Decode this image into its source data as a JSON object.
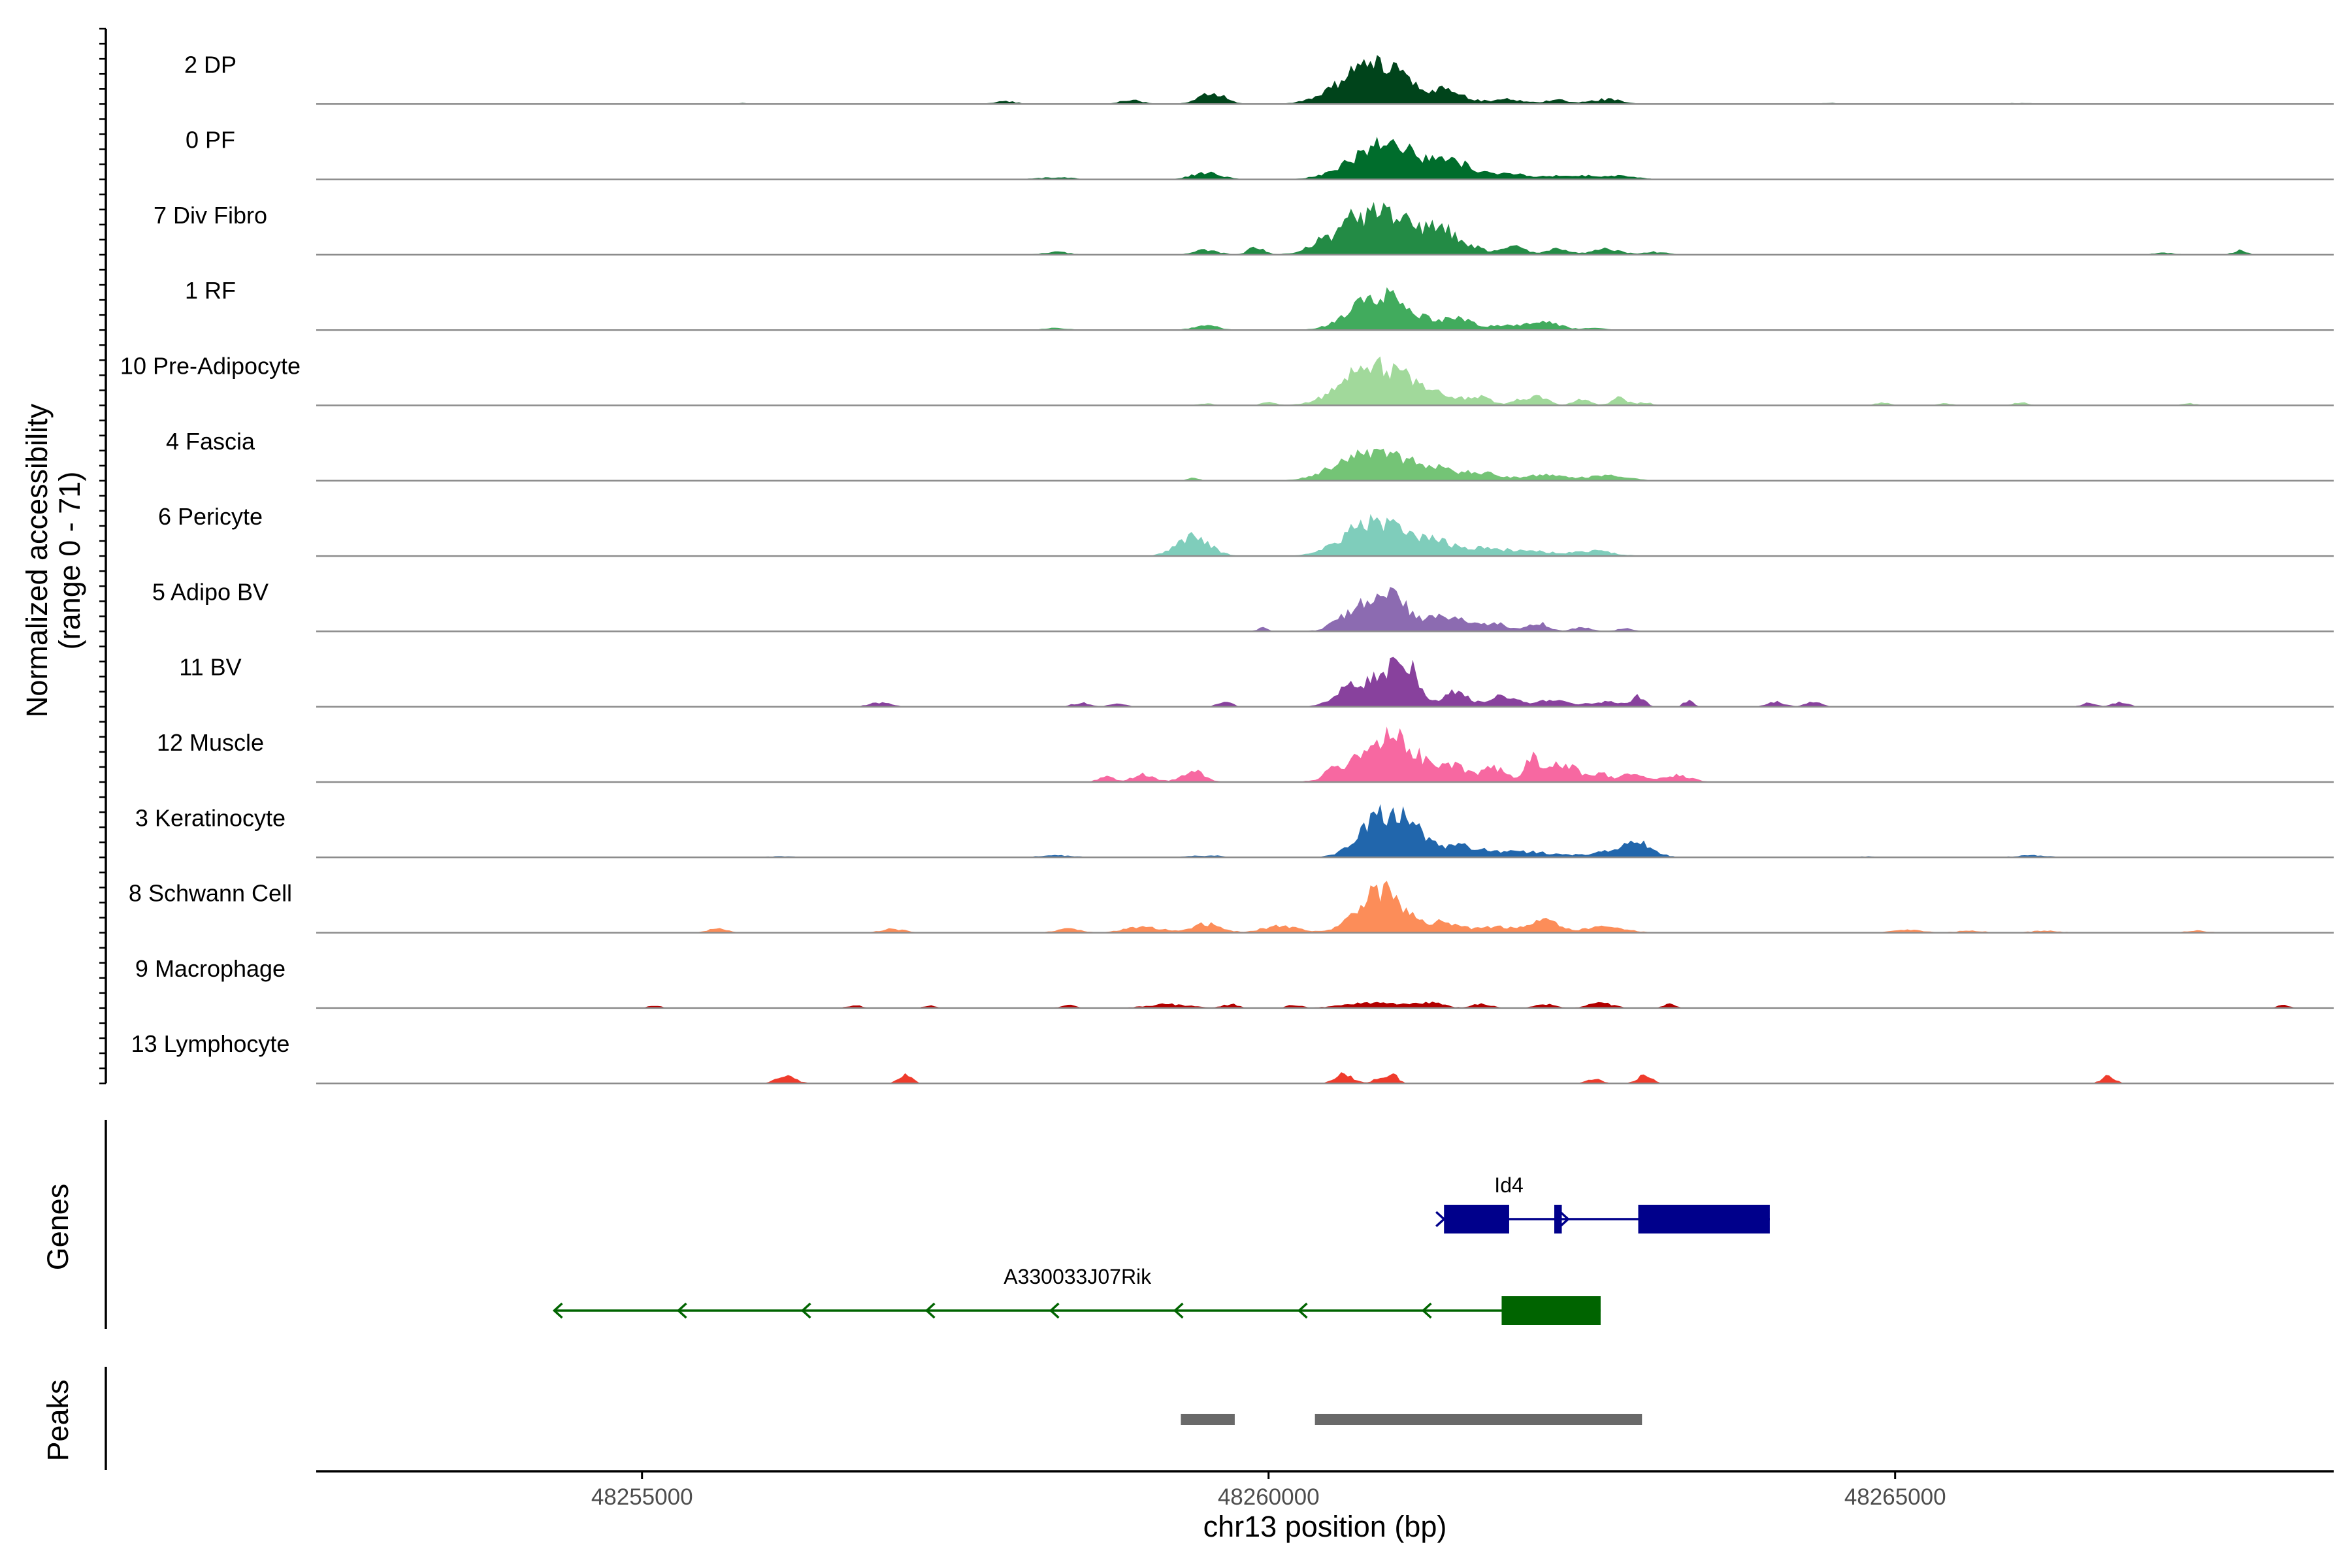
{
  "chart_data": {
    "type": "area",
    "chromosome": "chr13",
    "xlim": [
      48252400,
      48268500
    ],
    "xlabel": "chr13 position (bp)",
    "x_ticks": [
      48255000,
      48260000,
      48265000
    ],
    "x_tick_labels": [
      "48255000",
      "48260000",
      "48265000"
    ],
    "ylabel_line1": "Normalized accessibility",
    "ylabel_line2": "(range 0 - 71)",
    "ylim": [
      0,
      71
    ],
    "tracks": [
      {
        "name": "2 DP",
        "color": "#00441b",
        "peaks": [
          [
            48255800,
            40,
            1
          ],
          [
            48257900,
            90,
            3
          ],
          [
            48258900,
            100,
            4
          ],
          [
            48259550,
            110,
            11
          ],
          [
            48260850,
            260,
            41
          ],
          [
            48261450,
            140,
            11
          ],
          [
            48261900,
            120,
            5
          ],
          [
            48262300,
            110,
            4
          ],
          [
            48262700,
            120,
            5
          ],
          [
            48264500,
            150,
            1
          ],
          [
            48266000,
            150,
            1
          ]
        ]
      },
      {
        "name": "0 PF",
        "color": "#006d2c",
        "peaks": [
          [
            48258300,
            150,
            2
          ],
          [
            48259500,
            120,
            7
          ],
          [
            48260950,
            260,
            38
          ],
          [
            48261500,
            140,
            15
          ],
          [
            48261900,
            140,
            6
          ],
          [
            48262400,
            200,
            4
          ],
          [
            48262800,
            150,
            3
          ]
        ]
      },
      {
        "name": "7 Div Fibro",
        "color": "#238b45",
        "peaks": [
          [
            48258300,
            100,
            3
          ],
          [
            48259500,
            100,
            5
          ],
          [
            48259900,
            60,
            8
          ],
          [
            48260400,
            80,
            6
          ],
          [
            48260650,
            50,
            8
          ],
          [
            48260900,
            280,
            44
          ],
          [
            48261400,
            110,
            19
          ],
          [
            48261650,
            90,
            6
          ],
          [
            48261950,
            90,
            9
          ],
          [
            48262300,
            90,
            6
          ],
          [
            48262700,
            120,
            6
          ],
          [
            48263100,
            90,
            3
          ],
          [
            48267150,
            90,
            2
          ],
          [
            48267750,
            50,
            5
          ]
        ]
      },
      {
        "name": "1 RF",
        "color": "#41ab5d",
        "peaks": [
          [
            48258300,
            100,
            2
          ],
          [
            48259500,
            100,
            5
          ],
          [
            48260900,
            220,
            37
          ],
          [
            48261500,
            150,
            11
          ],
          [
            48261900,
            100,
            5
          ],
          [
            48262200,
            120,
            9
          ],
          [
            48262600,
            100,
            2
          ]
        ]
      },
      {
        "name": "10 Pre-Adipocyte",
        "color": "#a1d99b",
        "peaks": [
          [
            48259500,
            60,
            2
          ],
          [
            48260000,
            60,
            3
          ],
          [
            48260800,
            220,
            38
          ],
          [
            48261100,
            140,
            15
          ],
          [
            48261400,
            120,
            11
          ],
          [
            48261700,
            90,
            8
          ],
          [
            48262000,
            70,
            5
          ],
          [
            48262150,
            80,
            9
          ],
          [
            48262500,
            70,
            6
          ],
          [
            48262800,
            60,
            8
          ],
          [
            48263000,
            60,
            3
          ],
          [
            48264900,
            60,
            3
          ],
          [
            48265400,
            60,
            2
          ],
          [
            48266000,
            60,
            3
          ],
          [
            48267350,
            60,
            2
          ]
        ]
      },
      {
        "name": "4 Fascia",
        "color": "#74c476",
        "peaks": [
          [
            48259400,
            40,
            4
          ],
          [
            48260800,
            240,
            33
          ],
          [
            48261300,
            160,
            13
          ],
          [
            48261700,
            150,
            8
          ],
          [
            48262200,
            150,
            6
          ],
          [
            48262700,
            180,
            5
          ]
        ]
      },
      {
        "name": "6 Pericyte",
        "color": "#7fcdbb",
        "peaks": [
          [
            48259400,
            130,
            20
          ],
          [
            48260850,
            230,
            37
          ],
          [
            48261350,
            160,
            13
          ],
          [
            48261750,
            140,
            7
          ],
          [
            48262100,
            180,
            5
          ],
          [
            48262600,
            160,
            5
          ]
        ]
      },
      {
        "name": "5 Adipo BV",
        "color": "#8c6bb1",
        "peaks": [
          [
            48259950,
            40,
            4
          ],
          [
            48260550,
            60,
            5
          ],
          [
            48260900,
            200,
            41
          ],
          [
            48261450,
            140,
            14
          ],
          [
            48261800,
            110,
            8
          ],
          [
            48262150,
            80,
            9
          ],
          [
            48262500,
            80,
            4
          ],
          [
            48262850,
            70,
            3
          ]
        ]
      },
      {
        "name": "11 BV",
        "color": "#88419d",
        "peaks": [
          [
            48256900,
            90,
            4
          ],
          [
            48258500,
            70,
            4
          ],
          [
            48258800,
            60,
            4
          ],
          [
            48259650,
            60,
            5
          ],
          [
            48260600,
            110,
            11
          ],
          [
            48260900,
            180,
            30
          ],
          [
            48261100,
            100,
            31
          ],
          [
            48261500,
            90,
            17
          ],
          [
            48261850,
            110,
            10
          ],
          [
            48262250,
            170,
            6
          ],
          [
            48262700,
            110,
            5
          ],
          [
            48262950,
            50,
            11
          ],
          [
            48263350,
            40,
            6
          ],
          [
            48264050,
            70,
            5
          ],
          [
            48264350,
            60,
            5
          ],
          [
            48266550,
            60,
            4
          ],
          [
            48266800,
            60,
            5
          ]
        ]
      },
      {
        "name": "12 Muscle",
        "color": "#f768a1",
        "peaks": [
          [
            48258700,
            60,
            6
          ],
          [
            48259000,
            90,
            8
          ],
          [
            48259400,
            90,
            12
          ],
          [
            48260500,
            60,
            5
          ],
          [
            48260950,
            240,
            48
          ],
          [
            48261500,
            100,
            13
          ],
          [
            48261800,
            100,
            14
          ],
          [
            48262100,
            50,
            25
          ],
          [
            48262350,
            120,
            20
          ],
          [
            48262650,
            60,
            9
          ],
          [
            48262900,
            100,
            8
          ],
          [
            48263250,
            120,
            7
          ]
        ]
      },
      {
        "name": "3 Keratinocyte",
        "color": "#2166ac",
        "peaks": [
          [
            48256100,
            200,
            1
          ],
          [
            48258300,
            150,
            2
          ],
          [
            48259500,
            150,
            2
          ],
          [
            48260900,
            170,
            42
          ],
          [
            48261150,
            110,
            24
          ],
          [
            48261500,
            160,
            11
          ],
          [
            48262000,
            280,
            6
          ],
          [
            48262750,
            180,
            5
          ],
          [
            48262950,
            120,
            13
          ],
          [
            48264800,
            150,
            1
          ],
          [
            48266100,
            150,
            2
          ]
        ]
      },
      {
        "name": "8 Schwann Cell",
        "color": "#fc8d59",
        "peaks": [
          [
            48255600,
            80,
            4
          ],
          [
            48257000,
            100,
            4
          ],
          [
            48258400,
            100,
            4
          ],
          [
            48259000,
            150,
            6
          ],
          [
            48259500,
            120,
            9
          ],
          [
            48260100,
            150,
            7
          ],
          [
            48260900,
            180,
            43
          ],
          [
            48261400,
            120,
            10
          ],
          [
            48261800,
            150,
            6
          ],
          [
            48262200,
            120,
            12
          ],
          [
            48262700,
            150,
            7
          ],
          [
            48265100,
            120,
            3
          ],
          [
            48265600,
            120,
            2
          ],
          [
            48266200,
            120,
            2
          ],
          [
            48267400,
            100,
            2
          ]
        ]
      },
      {
        "name": "9 Macrophage",
        "color": "#b30000",
        "peaks": [
          [
            48255100,
            50,
            3
          ],
          [
            48256700,
            60,
            3
          ],
          [
            48257300,
            50,
            3
          ],
          [
            48258400,
            60,
            3
          ],
          [
            48259200,
            170,
            4
          ],
          [
            48259700,
            60,
            4
          ],
          [
            48260200,
            60,
            3
          ],
          [
            48260850,
            230,
            6
          ],
          [
            48261300,
            100,
            5
          ],
          [
            48261700,
            80,
            4
          ],
          [
            48262200,
            80,
            4
          ],
          [
            48262650,
            100,
            5
          ],
          [
            48263200,
            50,
            4
          ],
          [
            48268100,
            50,
            3
          ]
        ]
      },
      {
        "name": "13 Lymphocyte",
        "color": "#ef3b2c",
        "peaks": [
          [
            48256150,
            80,
            7
          ],
          [
            48257100,
            50,
            10
          ],
          [
            48260600,
            70,
            10
          ],
          [
            48260900,
            60,
            6
          ],
          [
            48261000,
            40,
            8
          ],
          [
            48262600,
            60,
            5
          ],
          [
            48263000,
            60,
            8
          ],
          [
            48266700,
            50,
            9
          ]
        ]
      }
    ],
    "genes_label": "Genes",
    "genes": [
      {
        "name": "Id4",
        "color": "#00008b",
        "strand": "+",
        "start": 48261400,
        "end": 48264000,
        "exons": [
          [
            48261400,
            48261920
          ],
          [
            48262280,
            48262340
          ],
          [
            48262950,
            48264000
          ]
        ]
      },
      {
        "name": "A330033J07Rik",
        "color": "#006400",
        "strand": "-",
        "start": 48254300,
        "end": 48262650,
        "exons": [
          [
            48261860,
            48262650
          ]
        ]
      }
    ],
    "peaks_label": "Peaks",
    "peaks": [
      [
        48259300,
        48259730
      ],
      [
        48260370,
        48262980
      ]
    ],
    "colors": {
      "axis": "#000000",
      "baseline": "#8c8c8c",
      "tick_text": "#4d4d4d",
      "peak_bar": "#696969"
    }
  }
}
